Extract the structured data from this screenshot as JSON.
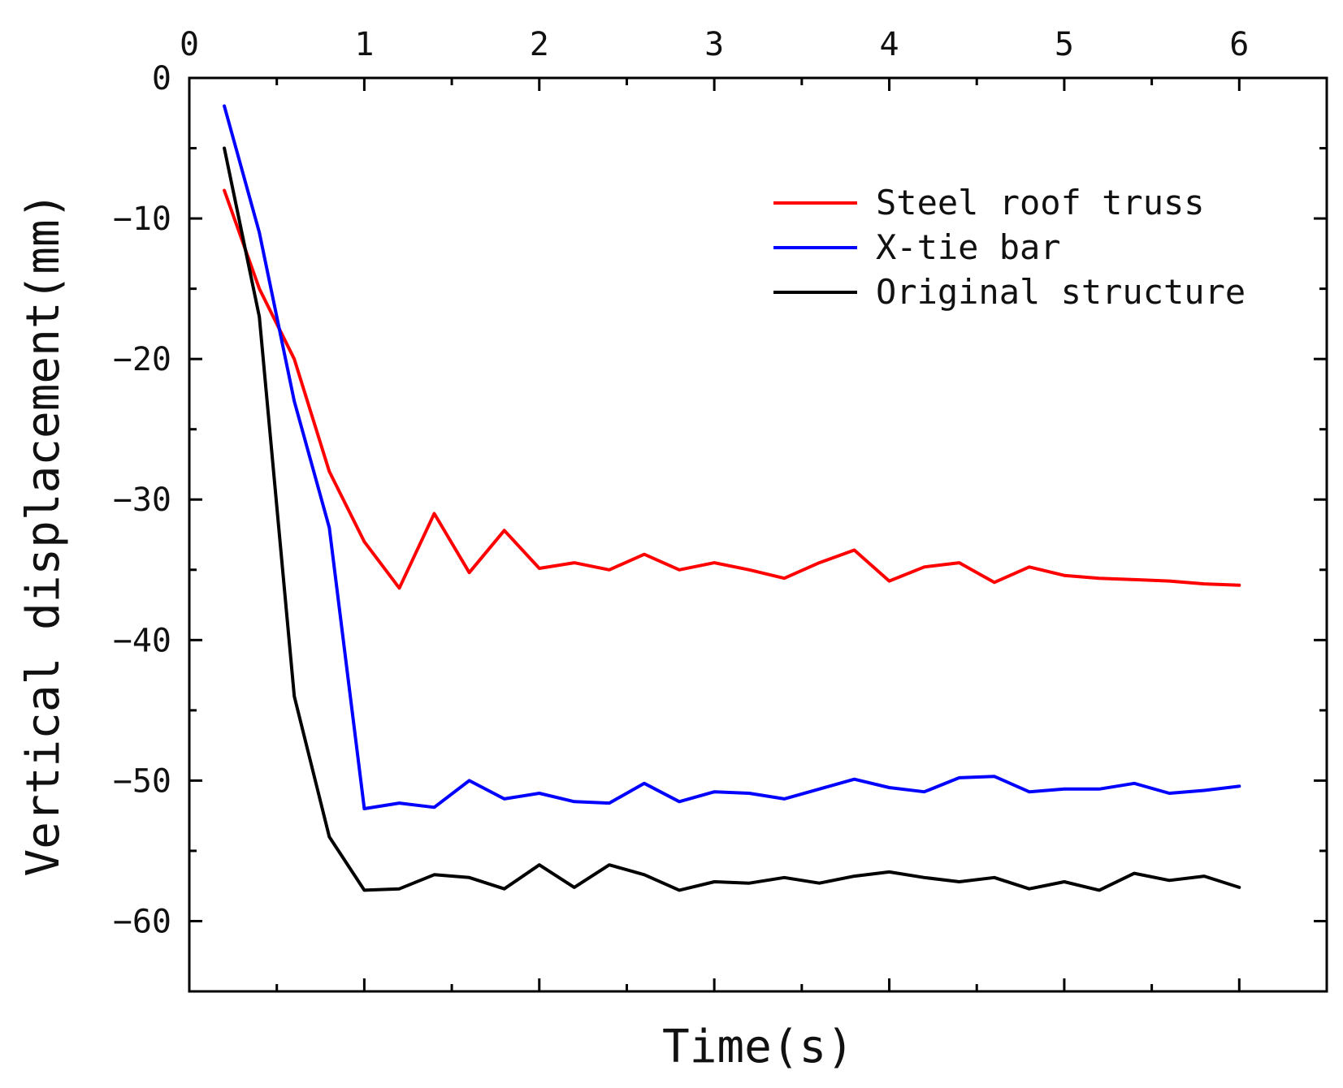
{
  "chart_data": {
    "type": "line",
    "title": "",
    "xlabel": "Time(s)",
    "ylabel": "Vertical displacement(mm)",
    "xlim": [
      0,
      6.5
    ],
    "ylim": [
      -65,
      0
    ],
    "xticks": [
      0,
      1,
      2,
      3,
      4,
      5,
      6
    ],
    "yticks": [
      0,
      -10,
      -20,
      -30,
      -40,
      -50,
      -60
    ],
    "xtick_labels": [
      "0",
      "1",
      "2",
      "3",
      "4",
      "5",
      "6"
    ],
    "ytick_labels": [
      "0",
      "−10",
      "−20",
      "−30",
      "−40",
      "−50",
      "−60"
    ],
    "grid": false,
    "legend_position": "top-right",
    "x": [
      0.2,
      0.4,
      0.6,
      0.8,
      1.0,
      1.2,
      1.4,
      1.6,
      1.8,
      2.0,
      2.2,
      2.4,
      2.6,
      2.8,
      3.0,
      3.2,
      3.4,
      3.6,
      3.8,
      4.0,
      4.2,
      4.4,
      4.6,
      4.8,
      5.0,
      5.2,
      5.4,
      5.6,
      5.8,
      6.0
    ],
    "series": [
      {
        "name": "Steel roof truss",
        "color": "#ff0000",
        "values": [
          -8,
          -15,
          -20,
          -28,
          -33,
          -36.3,
          -31,
          -35.2,
          -32.2,
          -34.9,
          -34.5,
          -35,
          -33.9,
          -35,
          -34.5,
          -35,
          -35.6,
          -34.5,
          -33.6,
          -35.8,
          -34.8,
          -34.5,
          -35.9,
          -34.8,
          -35.4,
          -35.6,
          -35.7,
          -35.8,
          -36,
          -36.1
        ]
      },
      {
        "name": "X-tie bar",
        "color": "#0000ff",
        "values": [
          -2,
          -11,
          -23,
          -32,
          -52,
          -51.6,
          -51.9,
          -50,
          -51.3,
          -50.9,
          -51.5,
          -51.6,
          -50.2,
          -51.5,
          -50.8,
          -50.9,
          -51.3,
          -50.6,
          -49.9,
          -50.5,
          -50.8,
          -49.8,
          -49.7,
          -50.8,
          -50.6,
          -50.6,
          -50.2,
          -50.9,
          -50.7,
          -50.4
        ]
      },
      {
        "name": "Original structure",
        "color": "#000000",
        "values": [
          -5,
          -17,
          -44,
          -54,
          -57.8,
          -57.7,
          -56.7,
          -56.9,
          -57.7,
          -56,
          -57.6,
          -56,
          -56.7,
          -57.8,
          -57.2,
          -57.3,
          -56.9,
          -57.3,
          -56.8,
          -56.5,
          -56.9,
          -57.2,
          -56.9,
          -57.7,
          -57.2,
          -57.8,
          -56.6,
          -57.1,
          -56.8,
          -57.6
        ]
      }
    ]
  }
}
